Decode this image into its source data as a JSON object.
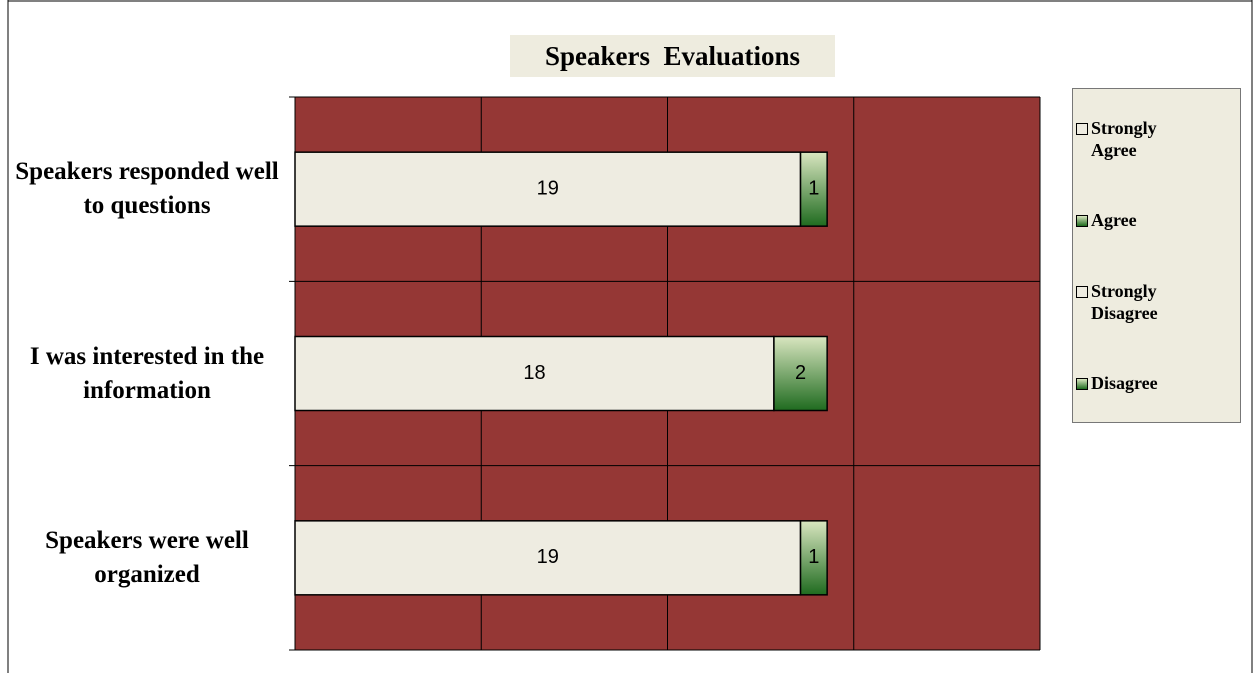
{
  "chart_data": {
    "type": "bar",
    "orientation": "horizontal",
    "stacked": true,
    "title": "Speakers  Evaluations",
    "categories": [
      "Speakers responded well to questions",
      "I was interested in the information",
      "Speakers were well organized"
    ],
    "series": [
      {
        "name": "Strongly Agree",
        "color": "#eeece1",
        "values": [
          19,
          18,
          19
        ]
      },
      {
        "name": "Agree",
        "color": "#1f6b1f",
        "gradient": true,
        "values": [
          1,
          2,
          1
        ]
      },
      {
        "name": "Strongly Disagree",
        "color": "#eeece1",
        "values": [
          null,
          null,
          null
        ]
      },
      {
        "name": "Disagree",
        "color": "#1f6b1f",
        "gradient": true,
        "values": [
          null,
          null,
          null
        ]
      }
    ],
    "xlim": [
      0,
      28
    ],
    "xticks": [
      0,
      7,
      14,
      21,
      28
    ],
    "grid": true,
    "legend": "right",
    "plot_background": "#953735"
  }
}
